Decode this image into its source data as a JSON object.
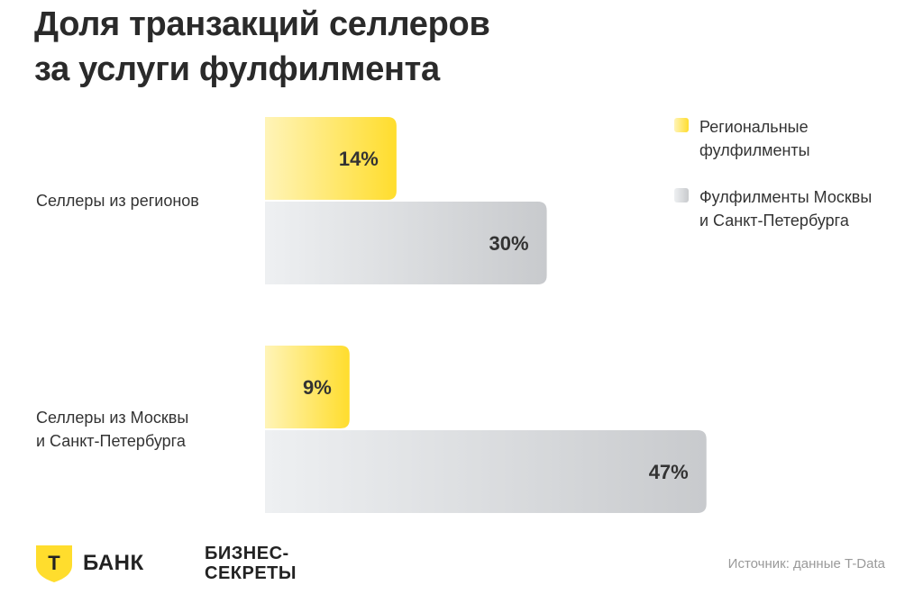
{
  "header": {
    "title_line1": "Доля транзакций селлеров",
    "title_line2": "за услуги фулфилмента"
  },
  "chart_data": {
    "type": "bar",
    "orientation": "horizontal",
    "categories": [
      "Селлеры из регионов",
      "Селлеры из Москвы и Санкт-Петербурга"
    ],
    "category_lines": [
      [
        "Селлеры из регионов"
      ],
      [
        "Селлеры из Москвы",
        "и Санкт-Петербурга"
      ]
    ],
    "series": [
      {
        "name": "Региональные фулфилменты",
        "values": [
          14,
          9
        ],
        "labels": [
          "14%",
          "9%"
        ],
        "color": "#ffdd2d",
        "color_light": "#fff4b8"
      },
      {
        "name": "Фулфилменты Москвы и Санкт-Петербурга",
        "values": [
          30,
          47
        ],
        "labels": [
          "30%",
          "47%"
        ],
        "color": "#c8cacd",
        "color_light": "#eef0f2"
      }
    ],
    "unit": "%",
    "xlim": [
      0,
      47
    ],
    "grid": false,
    "legend_position": "top-right"
  },
  "legend": {
    "items": [
      {
        "lines": [
          "Региональные",
          "фулфилменты"
        ]
      },
      {
        "lines": [
          "Фулфилменты Москвы",
          "и Санкт-Петербурга"
        ]
      }
    ]
  },
  "footer": {
    "bank_letter": "Т",
    "bank_name": "БАНК",
    "logo2_line1": "БИЗНЕС-",
    "logo2_line2": "СЕКРЕТЫ",
    "source": "Источник: данные T-Data"
  },
  "icons": {
    "bank_logo": "tbank-shield-icon"
  },
  "colors": {
    "accent": "#ffdd2d",
    "text": "#2a2a2a",
    "muted": "#9a9a9a"
  }
}
